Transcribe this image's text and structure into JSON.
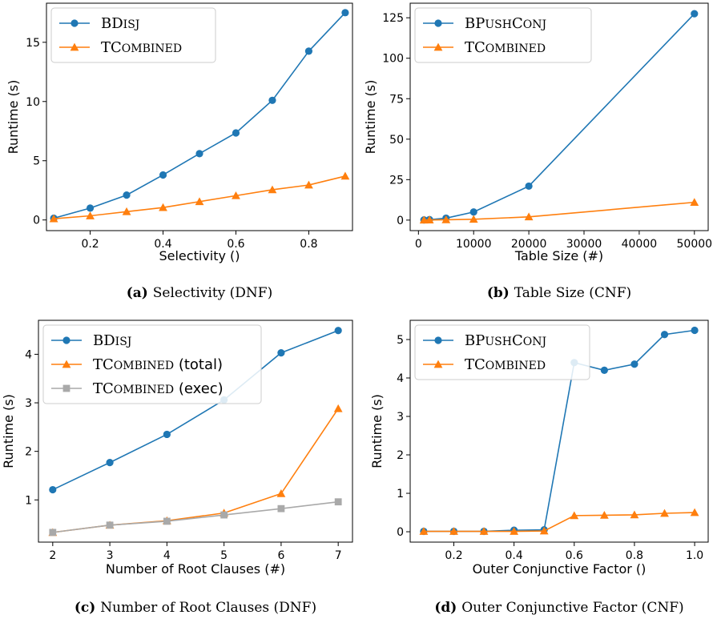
{
  "colors": {
    "blue": "#1f77b4",
    "orange": "#ff7f0e",
    "gray": "#a9a9a9"
  },
  "chart_data": [
    {
      "type": "line",
      "caption_label": "(a)",
      "caption_text": "Selectivity (DNF)",
      "xlabel": "Selectivity ()",
      "ylabel": "Runtime (s)",
      "xlim": [
        0.08,
        0.92
      ],
      "ylim": [
        -0.9,
        18.3
      ],
      "xticks": [
        0.2,
        0.4,
        0.6,
        0.8
      ],
      "xtick_labels": [
        "0.2",
        "0.4",
        "0.6",
        "0.8"
      ],
      "yticks": [
        0,
        5,
        10,
        15
      ],
      "ytick_labels": [
        "0",
        "5",
        "10",
        "15"
      ],
      "legend": "top-left",
      "grid": false,
      "series": [
        {
          "name": "BDisj",
          "color": "blue",
          "marker": "circle",
          "x": [
            0.1,
            0.2,
            0.3,
            0.4,
            0.5,
            0.6,
            0.7,
            0.8,
            0.9
          ],
          "y": [
            0.15,
            1.0,
            2.1,
            3.8,
            5.6,
            7.35,
            10.1,
            14.25,
            17.5
          ]
        },
        {
          "name": "TCombined",
          "color": "orange",
          "marker": "triangle",
          "x": [
            0.1,
            0.2,
            0.3,
            0.4,
            0.5,
            0.6,
            0.7,
            0.8,
            0.9
          ],
          "y": [
            0.1,
            0.35,
            0.7,
            1.05,
            1.55,
            2.05,
            2.55,
            2.95,
            3.7
          ]
        }
      ]
    },
    {
      "type": "line",
      "caption_label": "(b)",
      "caption_text": "Table Size (CNF)",
      "xlabel": "Table Size (#)",
      "ylabel": "Runtime (s)",
      "xlim": [
        -1500,
        52500
      ],
      "ylim": [
        -6.5,
        134
      ],
      "xticks": [
        0,
        10000,
        20000,
        30000,
        40000,
        50000
      ],
      "xtick_labels": [
        "0",
        "10000",
        "20000",
        "30000",
        "40000",
        "50000"
      ],
      "yticks": [
        0,
        25,
        50,
        75,
        100,
        125
      ],
      "ytick_labels": [
        "0",
        "25",
        "50",
        "75",
        "100",
        "125"
      ],
      "legend": "top-left",
      "grid": false,
      "series": [
        {
          "name": "BPushConj",
          "color": "blue",
          "marker": "circle",
          "x": [
            1000,
            2000,
            5000,
            10000,
            20000,
            50000
          ],
          "y": [
            0.1,
            0.3,
            1.2,
            5.0,
            21.0,
            127.5
          ]
        },
        {
          "name": "TCombined",
          "color": "orange",
          "marker": "triangle",
          "x": [
            1000,
            2000,
            5000,
            10000,
            20000,
            50000
          ],
          "y": [
            0.05,
            0.1,
            0.2,
            0.5,
            2.0,
            11.0
          ]
        }
      ]
    },
    {
      "type": "line",
      "caption_label": "(c)",
      "caption_text": "Number of Root Clauses (DNF)",
      "xlabel": "Number of Root Clauses (#)",
      "ylabel": "Runtime (s)",
      "xlim": [
        1.75,
        7.25
      ],
      "ylim": [
        0.13,
        4.7
      ],
      "xticks": [
        2,
        3,
        4,
        5,
        6,
        7
      ],
      "xtick_labels": [
        "2",
        "3",
        "4",
        "5",
        "6",
        "7"
      ],
      "yticks": [
        1,
        2,
        3,
        4
      ],
      "ytick_labels": [
        "1",
        "2",
        "3",
        "4"
      ],
      "legend": "top-left",
      "grid": false,
      "series": [
        {
          "name": "BDisj",
          "color": "blue",
          "marker": "circle",
          "x": [
            2,
            3,
            4,
            5,
            6,
            7
          ],
          "y": [
            1.21,
            1.77,
            2.35,
            3.06,
            4.03,
            4.49
          ]
        },
        {
          "name": "TCombined (total)",
          "color": "orange",
          "marker": "triangle",
          "x": [
            2,
            3,
            4,
            5,
            6,
            7
          ],
          "y": [
            0.33,
            0.48,
            0.57,
            0.73,
            1.13,
            2.88
          ]
        },
        {
          "name": "TCombined (exec)",
          "color": "gray",
          "marker": "square",
          "x": [
            2,
            3,
            4,
            5,
            6,
            7
          ],
          "y": [
            0.33,
            0.48,
            0.56,
            0.69,
            0.82,
            0.96
          ]
        }
      ]
    },
    {
      "type": "line",
      "caption_label": "(d)",
      "caption_text": "Outer Conjunctive Factor (CNF)",
      "xlabel": "Outer Conjunctive Factor ()",
      "ylabel": "Runtime (s)",
      "xlim": [
        0.055,
        1.045
      ],
      "ylim": [
        -0.27,
        5.5
      ],
      "xticks": [
        0.2,
        0.4,
        0.6,
        0.8,
        1.0
      ],
      "xtick_labels": [
        "0.2",
        "0.4",
        "0.6",
        "0.8",
        "1.0"
      ],
      "yticks": [
        0,
        1,
        2,
        3,
        4,
        5
      ],
      "ytick_labels": [
        "0",
        "1",
        "2",
        "3",
        "4",
        "5"
      ],
      "legend": "top-left",
      "grid": false,
      "series": [
        {
          "name": "BPushConj",
          "color": "blue",
          "marker": "circle",
          "x": [
            0.1,
            0.2,
            0.3,
            0.4,
            0.5,
            0.6,
            0.7,
            0.8,
            0.9,
            1.0
          ],
          "y": [
            0.01,
            0.01,
            0.01,
            0.04,
            0.05,
            4.4,
            4.2,
            4.36,
            5.13,
            5.24
          ]
        },
        {
          "name": "TCombined",
          "color": "orange",
          "marker": "triangle",
          "x": [
            0.1,
            0.2,
            0.3,
            0.4,
            0.5,
            0.6,
            0.7,
            0.8,
            0.9,
            1.0
          ],
          "y": [
            0.01,
            0.01,
            0.01,
            0.01,
            0.02,
            0.42,
            0.43,
            0.44,
            0.48,
            0.5
          ]
        }
      ]
    }
  ]
}
